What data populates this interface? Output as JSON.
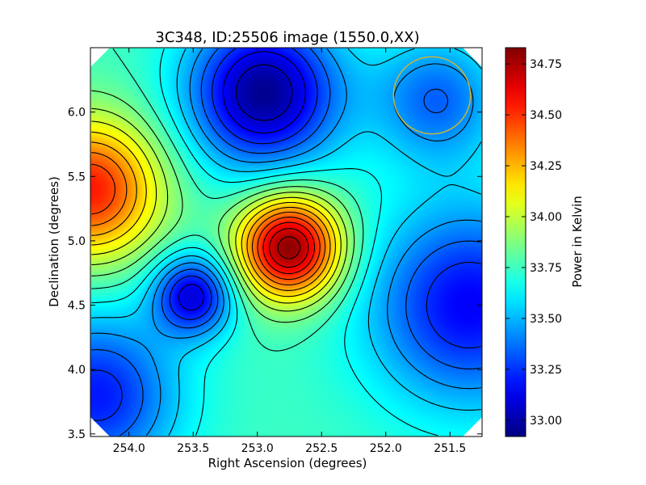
{
  "chart_data": {
    "type": "heatmap",
    "title": "3C348, ID:25506 image (1550.0,XX)",
    "xlabel": "Right Ascension (degrees)",
    "ylabel": "Declination (degrees)",
    "colorbar_label": "Power in Kelvin",
    "xlim": [
      254.3,
      251.25
    ],
    "ylim": [
      3.48,
      6.5
    ],
    "x_ticks": [
      254.0,
      253.5,
      253.0,
      252.5,
      252.0,
      251.5
    ],
    "x_tick_labels": [
      "254.0",
      "253.5",
      "253.0",
      "252.5",
      "252.0",
      "251.5"
    ],
    "y_ticks": [
      3.5,
      4.0,
      4.5,
      5.0,
      5.5,
      6.0
    ],
    "y_tick_labels": [
      "3.5",
      "4.0",
      "4.5",
      "5.0",
      "5.5",
      "6.0"
    ],
    "colorbar_range": [
      32.92,
      34.83
    ],
    "colorbar_ticks": [
      33.0,
      33.25,
      33.5,
      33.75,
      34.0,
      34.25,
      34.5,
      34.75
    ],
    "colorbar_tick_labels": [
      "33.00",
      "33.25",
      "33.50",
      "33.75",
      "34.00",
      "34.25",
      "34.50",
      "34.75"
    ],
    "colormap": "jet",
    "background_level": 33.75,
    "features": [
      {
        "kind": "maximum",
        "ra": 252.75,
        "dec": 4.95,
        "value": 34.83
      },
      {
        "kind": "maximum",
        "ra": 254.3,
        "dec": 5.4,
        "value": 34.55
      },
      {
        "kind": "minimum",
        "ra": 252.95,
        "dec": 6.15,
        "value": 32.95
      },
      {
        "kind": "minimum",
        "ra": 253.5,
        "dec": 4.58,
        "value": 33.1
      },
      {
        "kind": "minimum",
        "ra": 251.35,
        "dec": 4.5,
        "value": 33.15
      },
      {
        "kind": "minimum",
        "ra": 254.25,
        "dec": 3.8,
        "value": 33.2
      },
      {
        "kind": "minimum",
        "ra": 251.6,
        "dec": 6.1,
        "value": 33.35
      }
    ],
    "marker": {
      "shape": "circle",
      "ra": 251.64,
      "dec": 6.13,
      "radius_deg": 0.3,
      "color": "#c8b43c"
    },
    "grid": false
  }
}
